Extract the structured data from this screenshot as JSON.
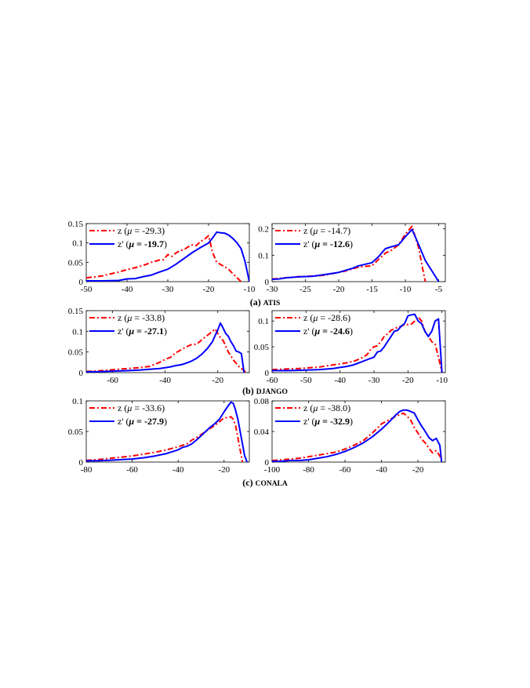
{
  "captions": [
    {
      "prefix": "(a) ",
      "name": "ATIS"
    },
    {
      "prefix": "(b) ",
      "name": "DJANGO"
    },
    {
      "prefix": "(c) ",
      "name": "CONALA"
    }
  ],
  "colors": {
    "z": "#ff0000",
    "zp": "#0000ff"
  },
  "chart_data": [
    {
      "type": "line",
      "panel": "atis-left",
      "xlim": [
        -50,
        -10
      ],
      "ylim": [
        0,
        0.15
      ],
      "xticks": [
        -50,
        -40,
        -30,
        -20,
        -10
      ],
      "xtick_labels": [
        "-50",
        "-40",
        "-30",
        "-20",
        "-10"
      ],
      "yticks": [
        0,
        0.05,
        0.1,
        0.15
      ],
      "ytick_labels": [
        "0",
        "0.05",
        "0.1",
        "0.15"
      ],
      "legend_position": "top-left",
      "series": [
        {
          "label_main": "z (",
          "label_mu": "μ",
          "label_eq": " = ",
          "label_val": "-29.3",
          "label_close": ")",
          "value_bold": false,
          "color": "#ff0000",
          "style": "dash-dot",
          "x": [
            -50,
            -48,
            -46,
            -44,
            -42,
            -40,
            -38,
            -36,
            -34,
            -32,
            -31,
            -30,
            -29,
            -28,
            -27,
            -26,
            -25,
            -24,
            -23,
            -22,
            -21,
            -20,
            -19,
            -18,
            -17,
            -16,
            -15,
            -14,
            -13,
            -12
          ],
          "y": [
            0.01,
            0.012,
            0.015,
            0.02,
            0.025,
            0.031,
            0.036,
            0.042,
            0.05,
            0.056,
            0.057,
            0.07,
            0.065,
            0.074,
            0.08,
            0.083,
            0.09,
            0.095,
            0.093,
            0.104,
            0.109,
            0.119,
            0.075,
            0.05,
            0.044,
            0.038,
            0.031,
            0.02,
            0.01,
            0.0
          ]
        },
        {
          "label_main": "z' (",
          "label_mu": "μ",
          "label_eq": " = ",
          "label_val": "-19.7",
          "label_close": ")",
          "value_bold": true,
          "color": "#0000ff",
          "style": "solid",
          "x": [
            -50,
            -46,
            -42,
            -40,
            -38,
            -36,
            -34,
            -32,
            -30,
            -28,
            -26,
            -24,
            -22,
            -20,
            -19,
            -18,
            -17,
            -16,
            -15,
            -14,
            -13,
            -12,
            -11,
            -10
          ],
          "y": [
            0.002,
            0.002,
            0.003,
            0.007,
            0.008,
            0.013,
            0.017,
            0.025,
            0.032,
            0.045,
            0.06,
            0.075,
            0.088,
            0.1,
            0.113,
            0.128,
            0.126,
            0.125,
            0.12,
            0.111,
            0.1,
            0.085,
            0.05,
            0.0
          ]
        }
      ]
    },
    {
      "type": "line",
      "panel": "atis-right",
      "xlim": [
        -30,
        -4
      ],
      "ylim": [
        0,
        0.22
      ],
      "xticks": [
        -30,
        -25,
        -20,
        -15,
        -10,
        -5
      ],
      "xtick_labels": [
        "-30",
        "-25",
        "-20",
        "-15",
        "-10",
        "-5"
      ],
      "yticks": [
        0,
        0.1,
        0.2
      ],
      "ytick_labels": [
        "0",
        "0.1",
        "0.2"
      ],
      "legend_position": "top-left",
      "series": [
        {
          "label_main": "z (",
          "label_mu": "μ",
          "label_eq": " = ",
          "label_val": "-14.7",
          "label_close": ")",
          "value_bold": false,
          "color": "#ff0000",
          "style": "dash-dot",
          "x": [
            -30,
            -29,
            -28,
            -27,
            -26,
            -25,
            -24,
            -23,
            -22,
            -21,
            -20,
            -19,
            -18,
            -17,
            -16,
            -15,
            -14,
            -13,
            -12,
            -11,
            -10,
            -9,
            -8,
            -7.5,
            -7
          ],
          "y": [
            0.01,
            0.012,
            0.015,
            0.017,
            0.019,
            0.02,
            0.021,
            0.022,
            0.025,
            0.03,
            0.035,
            0.04,
            0.048,
            0.055,
            0.058,
            0.06,
            0.085,
            0.108,
            0.12,
            0.14,
            0.18,
            0.21,
            0.128,
            0.06,
            0.0
          ]
        },
        {
          "label_main": "z' (",
          "label_mu": "μ",
          "label_eq": " = ",
          "label_val": "-12.6",
          "label_close": ")",
          "value_bold": true,
          "color": "#0000ff",
          "style": "solid",
          "x": [
            -30,
            -29,
            -28,
            -26,
            -24,
            -22,
            -20,
            -18,
            -17,
            -16,
            -15,
            -14,
            -13,
            -12,
            -11,
            -10,
            -9,
            -8,
            -7,
            -6,
            -5
          ],
          "y": [
            0.009,
            0.01,
            0.014,
            0.018,
            0.02,
            0.027,
            0.035,
            0.05,
            0.06,
            0.066,
            0.072,
            0.095,
            0.125,
            0.133,
            0.14,
            0.17,
            0.198,
            0.14,
            0.08,
            0.04,
            0.0
          ]
        }
      ]
    },
    {
      "type": "line",
      "panel": "django-left",
      "xlim": [
        -70,
        -8
      ],
      "ylim": [
        0,
        0.15
      ],
      "xticks": [
        -60,
        -40,
        -20
      ],
      "xtick_labels": [
        "-60",
        "-40",
        "-20"
      ],
      "yticks": [
        0,
        0.05,
        0.1,
        0.15
      ],
      "ytick_labels": [
        "0",
        "0.05",
        "0.1",
        "0.15"
      ],
      "legend_position": "top-left",
      "series": [
        {
          "label_main": "z (",
          "label_mu": "μ",
          "label_eq": " = ",
          "label_val": "-33.8",
          "label_close": ")",
          "value_bold": false,
          "color": "#ff0000",
          "style": "dash-dot",
          "x": [
            -70,
            -66,
            -62,
            -58,
            -54,
            -50,
            -46,
            -44,
            -42,
            -40,
            -38,
            -36,
            -34,
            -32,
            -30,
            -28,
            -26,
            -24,
            -22,
            -21,
            -20,
            -19,
            -18,
            -17,
            -16,
            -14,
            -12,
            -11,
            -10,
            -9
          ],
          "y": [
            0.003,
            0.004,
            0.006,
            0.008,
            0.01,
            0.012,
            0.015,
            0.02,
            0.025,
            0.032,
            0.037,
            0.048,
            0.055,
            0.062,
            0.068,
            0.069,
            0.08,
            0.09,
            0.1,
            0.106,
            0.095,
            0.085,
            0.078,
            0.065,
            0.05,
            0.03,
            0.015,
            0.01,
            0.005,
            0.0
          ]
        },
        {
          "label_main": "z' (",
          "label_mu": "μ",
          "label_eq": " = ",
          "label_val": "-27.1",
          "label_close": ")",
          "value_bold": true,
          "color": "#0000ff",
          "style": "solid",
          "x": [
            -70,
            -66,
            -62,
            -58,
            -54,
            -50,
            -46,
            -42,
            -40,
            -38,
            -36,
            -34,
            -32,
            -30,
            -28,
            -26,
            -24,
            -22,
            -21,
            -20,
            -19,
            -18,
            -17,
            -16,
            -15,
            -14,
            -13,
            -12,
            -11,
            -10
          ],
          "y": [
            0.002,
            0.002,
            0.003,
            0.004,
            0.005,
            0.006,
            0.008,
            0.01,
            0.012,
            0.014,
            0.017,
            0.019,
            0.023,
            0.028,
            0.035,
            0.045,
            0.058,
            0.075,
            0.09,
            0.103,
            0.12,
            0.108,
            0.095,
            0.088,
            0.075,
            0.065,
            0.052,
            0.05,
            0.046,
            0.0
          ]
        }
      ]
    },
    {
      "type": "line",
      "panel": "django-right",
      "xlim": [
        -60,
        -9
      ],
      "ylim": [
        0,
        0.12
      ],
      "xticks": [
        -60,
        -50,
        -40,
        -30,
        -20,
        -10
      ],
      "xtick_labels": [
        "-60",
        "-50",
        "-40",
        "-30",
        "-20",
        "-10"
      ],
      "yticks": [
        0,
        0.05,
        0.1
      ],
      "ytick_labels": [
        "0",
        "0.05",
        "0.1"
      ],
      "legend_position": "top-left",
      "series": [
        {
          "label_main": "z (",
          "label_mu": "μ",
          "label_eq": " = ",
          "label_val": "-28.6",
          "label_close": ")",
          "value_bold": false,
          "color": "#ff0000",
          "style": "dash-dot",
          "x": [
            -60,
            -56,
            -52,
            -50,
            -48,
            -46,
            -44,
            -42,
            -40,
            -38,
            -36,
            -34,
            -32,
            -31,
            -30,
            -29,
            -28,
            -27,
            -26,
            -25,
            -24,
            -23,
            -22,
            -21,
            -20,
            -19,
            -18,
            -17,
            -16,
            -15,
            -14,
            -13,
            -12,
            -11,
            -10
          ],
          "y": [
            0.006,
            0.007,
            0.008,
            0.009,
            0.01,
            0.011,
            0.013,
            0.015,
            0.017,
            0.019,
            0.022,
            0.027,
            0.035,
            0.045,
            0.05,
            0.052,
            0.06,
            0.07,
            0.075,
            0.082,
            0.085,
            0.088,
            0.09,
            0.093,
            0.093,
            0.094,
            0.1,
            0.108,
            0.1,
            0.08,
            0.07,
            0.06,
            0.055,
            0.03,
            0.0
          ]
        },
        {
          "label_main": "z' (",
          "label_mu": "μ",
          "label_eq": " = ",
          "label_val": "-24.6",
          "label_close": ")",
          "value_bold": true,
          "color": "#0000ff",
          "style": "solid",
          "x": [
            -60,
            -55,
            -50,
            -46,
            -42,
            -40,
            -38,
            -36,
            -34,
            -32,
            -30,
            -29,
            -28,
            -27,
            -26,
            -25,
            -24,
            -23,
            -22,
            -21,
            -20,
            -19,
            -18,
            -17,
            -16,
            -15,
            -14,
            -13,
            -12,
            -11,
            -10
          ],
          "y": [
            0.004,
            0.004,
            0.005,
            0.006,
            0.008,
            0.01,
            0.012,
            0.015,
            0.02,
            0.025,
            0.03,
            0.04,
            0.042,
            0.05,
            0.06,
            0.07,
            0.08,
            0.082,
            0.09,
            0.095,
            0.11,
            0.112,
            0.113,
            0.1,
            0.095,
            0.08,
            0.07,
            0.08,
            0.1,
            0.104,
            0.0
          ]
        }
      ]
    },
    {
      "type": "line",
      "panel": "conala-left",
      "xlim": [
        -80,
        -9
      ],
      "ylim": [
        0,
        0.1
      ],
      "xticks": [
        -80,
        -60,
        -40,
        -20
      ],
      "xtick_labels": [
        "-80",
        "-60",
        "-40",
        "-20"
      ],
      "yticks": [
        0,
        0.05,
        0.1
      ],
      "ytick_labels": [
        "0",
        "0.05",
        "0.1"
      ],
      "legend_position": "top-left",
      "series": [
        {
          "label_main": "z (",
          "label_mu": "μ",
          "label_eq": " = ",
          "label_val": "-33.6",
          "label_close": ")",
          "value_bold": false,
          "color": "#ff0000",
          "style": "dash-dot",
          "x": [
            -80,
            -75,
            -70,
            -65,
            -60,
            -55,
            -50,
            -45,
            -40,
            -36,
            -34,
            -32,
            -30,
            -28,
            -26,
            -24,
            -22,
            -20,
            -18,
            -17,
            -16,
            -15,
            -14,
            -13,
            -12
          ],
          "y": [
            0.003,
            0.004,
            0.006,
            0.008,
            0.01,
            0.013,
            0.016,
            0.02,
            0.025,
            0.03,
            0.036,
            0.04,
            0.045,
            0.05,
            0.055,
            0.06,
            0.066,
            0.072,
            0.073,
            0.074,
            0.07,
            0.06,
            0.04,
            0.02,
            0.0
          ]
        },
        {
          "label_main": "z' (",
          "label_mu": "μ",
          "label_eq": " = ",
          "label_val": "-27.9",
          "label_close": ")",
          "value_bold": true,
          "color": "#0000ff",
          "style": "solid",
          "x": [
            -80,
            -75,
            -70,
            -65,
            -60,
            -55,
            -50,
            -45,
            -40,
            -38,
            -36,
            -34,
            -32,
            -30,
            -28,
            -26,
            -24,
            -22,
            -20,
            -18,
            -17,
            -16,
            -15,
            -14,
            -13,
            -12,
            -11,
            -10
          ],
          "y": [
            0.002,
            0.002,
            0.003,
            0.004,
            0.005,
            0.007,
            0.01,
            0.014,
            0.02,
            0.024,
            0.026,
            0.03,
            0.036,
            0.043,
            0.05,
            0.057,
            0.063,
            0.07,
            0.082,
            0.093,
            0.098,
            0.096,
            0.085,
            0.07,
            0.05,
            0.03,
            0.01,
            0.0
          ]
        }
      ]
    },
    {
      "type": "line",
      "panel": "conala-right",
      "xlim": [
        -100,
        -5
      ],
      "ylim": [
        0,
        0.08
      ],
      "xticks": [
        -100,
        -80,
        -60,
        -40,
        -20
      ],
      "xtick_labels": [
        "-100",
        "-80",
        "-60",
        "-40",
        "-20"
      ],
      "yticks": [
        0,
        0.04,
        0.08
      ],
      "ytick_labels": [
        "0",
        "0.04",
        "0.08"
      ],
      "legend_position": "top-left",
      "series": [
        {
          "label_main": "z (",
          "label_mu": "μ",
          "label_eq": " = ",
          "label_val": "-38.0",
          "label_close": ")",
          "value_bold": false,
          "color": "#ff0000",
          "style": "dash-dot",
          "x": [
            -100,
            -95,
            -90,
            -85,
            -80,
            -75,
            -70,
            -65,
            -60,
            -55,
            -50,
            -45,
            -40,
            -36,
            -32,
            -28,
            -26,
            -24,
            -22,
            -20,
            -18,
            -16,
            -14,
            -12,
            -10,
            -8,
            -7
          ],
          "y": [
            0.002,
            0.003,
            0.004,
            0.005,
            0.007,
            0.009,
            0.011,
            0.013,
            0.017,
            0.022,
            0.028,
            0.038,
            0.05,
            0.055,
            0.06,
            0.064,
            0.06,
            0.055,
            0.045,
            0.038,
            0.03,
            0.025,
            0.018,
            0.012,
            0.015,
            0.008,
            0.001
          ]
        },
        {
          "label_main": "z' (",
          "label_mu": "μ",
          "label_eq": " = ",
          "label_val": "-32.9",
          "label_close": ")",
          "value_bold": true,
          "color": "#0000ff",
          "style": "solid",
          "x": [
            -100,
            -95,
            -90,
            -85,
            -80,
            -75,
            -70,
            -65,
            -60,
            -55,
            -50,
            -45,
            -40,
            -36,
            -32,
            -30,
            -28,
            -26,
            -24,
            -22,
            -20,
            -18,
            -16,
            -14,
            -12,
            -10,
            -8,
            -7
          ],
          "y": [
            0.001,
            0.001,
            0.002,
            0.002,
            0.003,
            0.005,
            0.007,
            0.01,
            0.014,
            0.019,
            0.025,
            0.033,
            0.043,
            0.052,
            0.062,
            0.066,
            0.068,
            0.068,
            0.066,
            0.064,
            0.055,
            0.047,
            0.04,
            0.032,
            0.028,
            0.031,
            0.022,
            0.0
          ]
        }
      ]
    }
  ]
}
